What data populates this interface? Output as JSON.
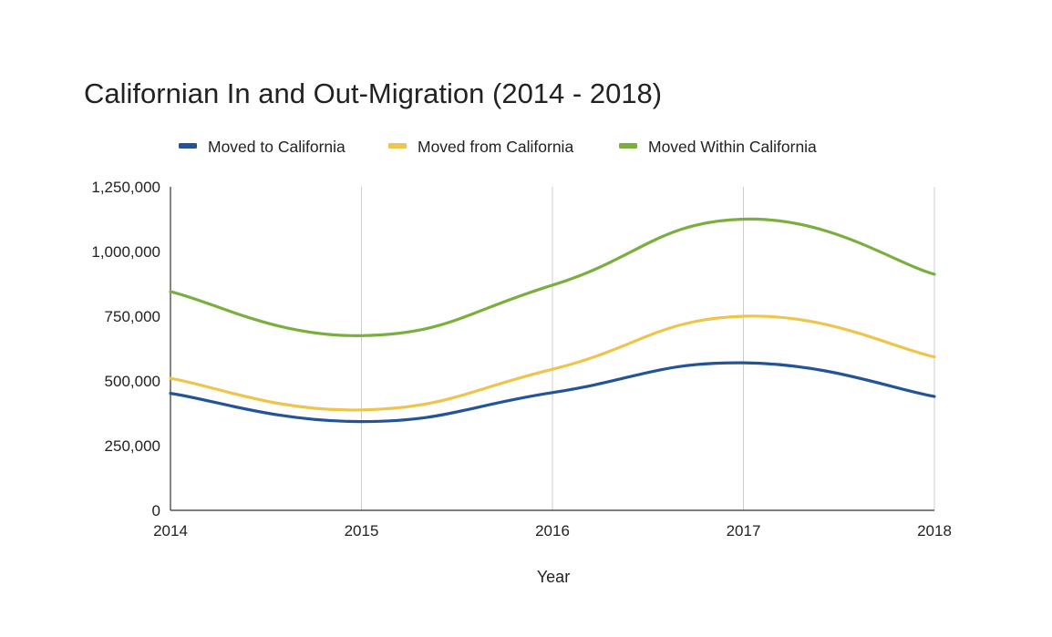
{
  "chart_data": {
    "type": "line",
    "title": "Californian In and Out-Migration (2014 - 2018)",
    "xlabel": "Year",
    "ylabel": "",
    "categories": [
      "2014",
      "2015",
      "2016",
      "2017",
      "2018"
    ],
    "y_ticks": [
      "0",
      "250,000",
      "500,000",
      "750,000",
      "1,000,000",
      "1,250,000"
    ],
    "y_tick_values": [
      0,
      250000,
      500000,
      750000,
      1000000,
      1250000
    ],
    "ylim": [
      0,
      1250000
    ],
    "grid": "vertical",
    "smooth": true,
    "legend_position": "top",
    "series": [
      {
        "name": "Moved to California",
        "color": "#235497",
        "values": [
          452000,
          343000,
          455000,
          570000,
          440000
        ]
      },
      {
        "name": "Moved from California",
        "color": "#efc44d",
        "values": [
          510000,
          388000,
          545000,
          750000,
          593000
        ]
      },
      {
        "name": "Moved Within California",
        "color": "#7aaf3f",
        "values": [
          845000,
          675000,
          870000,
          1125000,
          912000
        ]
      }
    ]
  }
}
